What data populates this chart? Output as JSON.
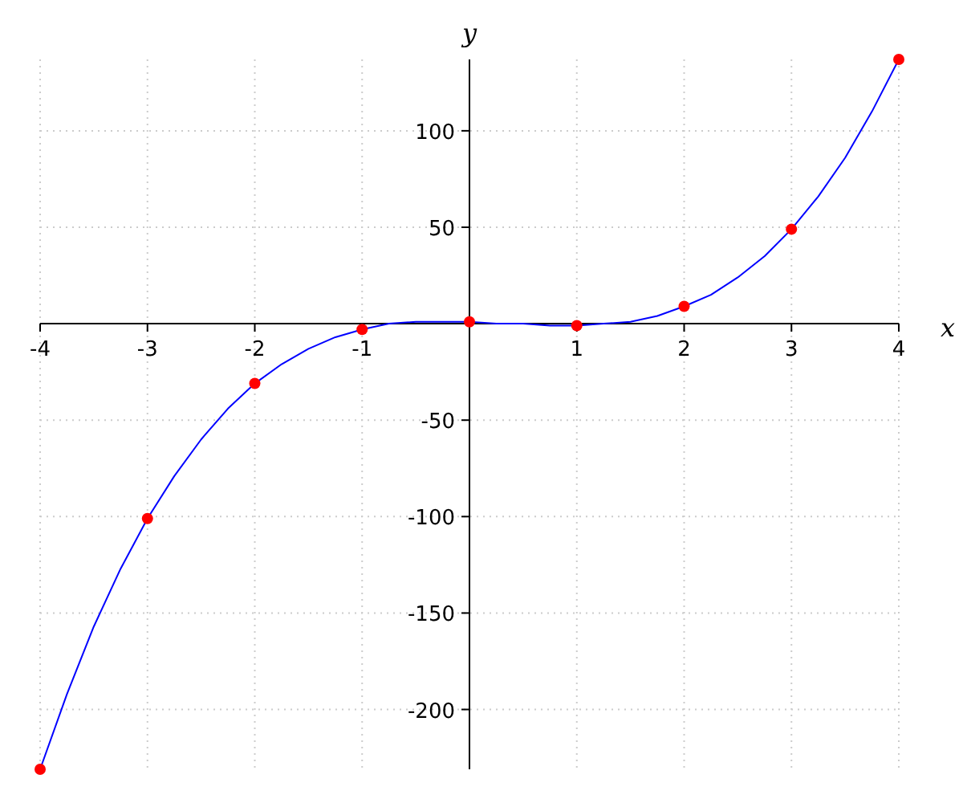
{
  "chart_data": {
    "type": "line",
    "xlabel": "x",
    "ylabel": "y",
    "xlim": [
      -4,
      4
    ],
    "ylim": [
      -231,
      137
    ],
    "xticks": [
      -4,
      -3,
      -2,
      -1,
      1,
      2,
      3,
      4
    ],
    "yticks": [
      -200,
      -150,
      -100,
      -50,
      50,
      100
    ],
    "grid": true,
    "series": [
      {
        "color": "#0000ff",
        "marker": "none",
        "x": [
          -4,
          -3.75,
          -3.5,
          -3.25,
          -3,
          -2.75,
          -2.5,
          -2.25,
          -2,
          -1.75,
          -1.5,
          -1.25,
          -1,
          -0.75,
          -0.5,
          -0.25,
          0,
          0.25,
          0.5,
          0.75,
          1,
          1.25,
          1.5,
          1.75,
          2,
          2.25,
          2.5,
          2.75,
          3,
          3.25,
          3.5,
          3.75,
          4
        ],
        "values": [
          -231,
          -192,
          -157,
          -127,
          -101,
          -79,
          -60,
          -44,
          -31,
          -21,
          -13,
          -7,
          -3,
          0,
          1,
          1,
          1,
          0,
          0,
          -1,
          -1,
          0,
          1,
          4,
          9,
          15,
          24,
          35,
          49,
          66,
          86,
          110,
          137
        ]
      },
      {
        "type": "scatter",
        "color": "#ff0000",
        "marker": "circle",
        "x": [
          -4,
          -3,
          -2,
          -1,
          0,
          1,
          2,
          3,
          4
        ],
        "values": [
          -231,
          -101,
          -31,
          -3,
          1,
          -1,
          9,
          49,
          137
        ]
      }
    ]
  }
}
